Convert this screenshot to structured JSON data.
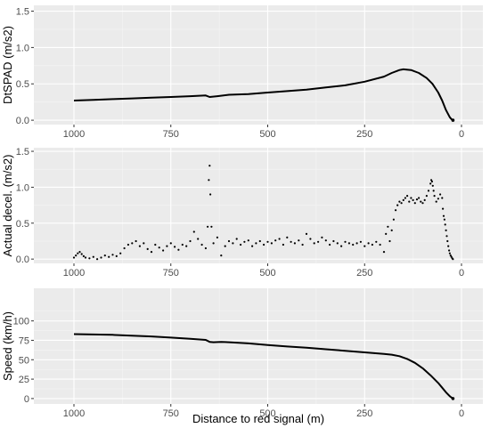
{
  "chart_data": [
    {
      "type": "line",
      "ylabel": "DtSPAD (m/s2)",
      "xlabel": "",
      "x_reversed": true,
      "xlim": [
        1090,
        -20
      ],
      "ylim": [
        -0.06,
        1.58
      ],
      "x_ticks": [
        1000,
        750,
        500,
        250,
        0
      ],
      "x_tick_labels": [
        "1000",
        "750",
        "500",
        "250",
        "0"
      ],
      "y_ticks": [
        0.0,
        0.5,
        1.0,
        1.5
      ],
      "y_tick_labels": [
        "0.0",
        "0.5",
        "1.0",
        "1.5"
      ],
      "grid": true,
      "series": [
        {
          "x": [
            1000,
            950,
            900,
            850,
            800,
            750,
            700,
            660,
            650,
            630,
            600,
            550,
            500,
            450,
            400,
            350,
            300,
            250,
            200,
            180,
            160,
            150,
            130,
            110,
            90,
            75,
            60,
            50,
            40,
            30,
            25,
            22
          ],
          "y": [
            0.27,
            0.28,
            0.29,
            0.3,
            0.31,
            0.32,
            0.33,
            0.34,
            0.32,
            0.33,
            0.35,
            0.36,
            0.38,
            0.4,
            0.42,
            0.45,
            0.48,
            0.53,
            0.6,
            0.65,
            0.69,
            0.7,
            0.69,
            0.65,
            0.58,
            0.5,
            0.38,
            0.27,
            0.14,
            0.04,
            0.01,
            0.0
          ]
        }
      ]
    },
    {
      "type": "scatter",
      "ylabel": "Actual decel. (m/s2)",
      "xlabel": "",
      "x_reversed": true,
      "xlim": [
        1090,
        -20
      ],
      "ylim": [
        -0.06,
        1.55
      ],
      "x_ticks": [
        1000,
        750,
        500,
        250,
        0
      ],
      "x_tick_labels": [
        "1000",
        "750",
        "500",
        "250",
        "0"
      ],
      "y_ticks": [
        0.0,
        0.5,
        1.0,
        1.5
      ],
      "y_tick_labels": [
        "0.0",
        "0.5",
        "1.0",
        "1.5"
      ],
      "grid": true,
      "series": [
        {
          "x": [
            1000,
            995,
            990,
            985,
            980,
            975,
            970,
            960,
            950,
            940,
            930,
            920,
            910,
            900,
            890,
            880,
            870,
            860,
            850,
            840,
            830,
            820,
            810,
            800,
            790,
            780,
            770,
            760,
            750,
            740,
            730,
            720,
            710,
            700,
            690,
            680,
            670,
            660,
            655,
            652,
            650,
            648,
            645,
            640,
            630,
            620,
            610,
            600,
            590,
            580,
            570,
            560,
            550,
            540,
            530,
            520,
            510,
            500,
            490,
            480,
            470,
            460,
            450,
            440,
            430,
            420,
            410,
            400,
            390,
            380,
            370,
            360,
            350,
            340,
            330,
            320,
            310,
            300,
            290,
            280,
            270,
            260,
            250,
            240,
            230,
            220,
            210,
            200,
            195,
            190,
            185,
            180,
            175,
            170,
            165,
            160,
            155,
            150,
            145,
            140,
            135,
            130,
            125,
            120,
            115,
            110,
            105,
            100,
            95,
            90,
            85,
            80,
            78,
            76,
            74,
            72,
            70,
            65,
            60,
            55,
            50,
            48,
            46,
            44,
            42,
            40,
            38,
            36,
            34,
            32,
            30,
            28,
            26,
            24,
            22
          ],
          "y": [
            0.02,
            0.05,
            0.08,
            0.1,
            0.07,
            0.04,
            0.02,
            0.01,
            0.03,
            0.0,
            0.02,
            0.05,
            0.03,
            0.06,
            0.04,
            0.08,
            0.15,
            0.2,
            0.22,
            0.25,
            0.18,
            0.22,
            0.14,
            0.1,
            0.2,
            0.16,
            0.12,
            0.18,
            0.22,
            0.17,
            0.13,
            0.2,
            0.18,
            0.25,
            0.38,
            0.28,
            0.2,
            0.15,
            0.45,
            1.1,
            1.3,
            0.9,
            0.45,
            0.22,
            0.3,
            0.05,
            0.18,
            0.25,
            0.22,
            0.28,
            0.2,
            0.24,
            0.26,
            0.18,
            0.22,
            0.25,
            0.2,
            0.24,
            0.22,
            0.26,
            0.28,
            0.2,
            0.3,
            0.24,
            0.22,
            0.26,
            0.2,
            0.35,
            0.28,
            0.22,
            0.24,
            0.3,
            0.26,
            0.2,
            0.25,
            0.22,
            0.18,
            0.24,
            0.22,
            0.2,
            0.22,
            0.24,
            0.18,
            0.22,
            0.2,
            0.24,
            0.2,
            0.1,
            0.35,
            0.45,
            0.25,
            0.4,
            0.55,
            0.68,
            0.75,
            0.8,
            0.78,
            0.82,
            0.85,
            0.88,
            0.8,
            0.85,
            0.82,
            0.78,
            0.83,
            0.85,
            0.8,
            0.78,
            0.82,
            0.88,
            0.95,
            1.05,
            1.1,
            1.08,
            1.02,
            0.95,
            0.88,
            0.8,
            0.84,
            0.9,
            0.85,
            0.7,
            0.6,
            0.55,
            0.48,
            0.4,
            0.32,
            0.25,
            0.18,
            0.12,
            0.08,
            0.05,
            0.03,
            0.01,
            0.0
          ]
        }
      ]
    },
    {
      "type": "line",
      "ylabel": "Speed (km/h)",
      "xlabel": "Distance to red signal (m)",
      "x_reversed": true,
      "xlim": [
        1090,
        -20
      ],
      "ylim": [
        -7,
        142
      ],
      "x_ticks": [
        1000,
        750,
        500,
        250,
        0
      ],
      "x_tick_labels": [
        "1000",
        "750",
        "500",
        "250",
        "0"
      ],
      "y_ticks": [
        0,
        25,
        50,
        75,
        100
      ],
      "y_tick_labels": [
        "0",
        "25",
        "50",
        "75",
        "100"
      ],
      "grid": true,
      "series": [
        {
          "x": [
            1000,
            950,
            900,
            850,
            800,
            750,
            700,
            660,
            650,
            640,
            620,
            600,
            550,
            500,
            450,
            400,
            350,
            300,
            250,
            200,
            180,
            160,
            140,
            120,
            100,
            80,
            60,
            50,
            40,
            30,
            25,
            22
          ],
          "y": [
            83,
            82.5,
            82,
            81,
            80,
            78.5,
            77,
            75.5,
            73,
            72.5,
            73,
            72.5,
            71,
            69,
            67,
            65.5,
            63.5,
            61.5,
            59.5,
            57.5,
            56.5,
            54.5,
            51,
            46,
            39,
            30,
            20,
            14,
            8,
            3,
            1,
            0
          ]
        }
      ]
    }
  ]
}
